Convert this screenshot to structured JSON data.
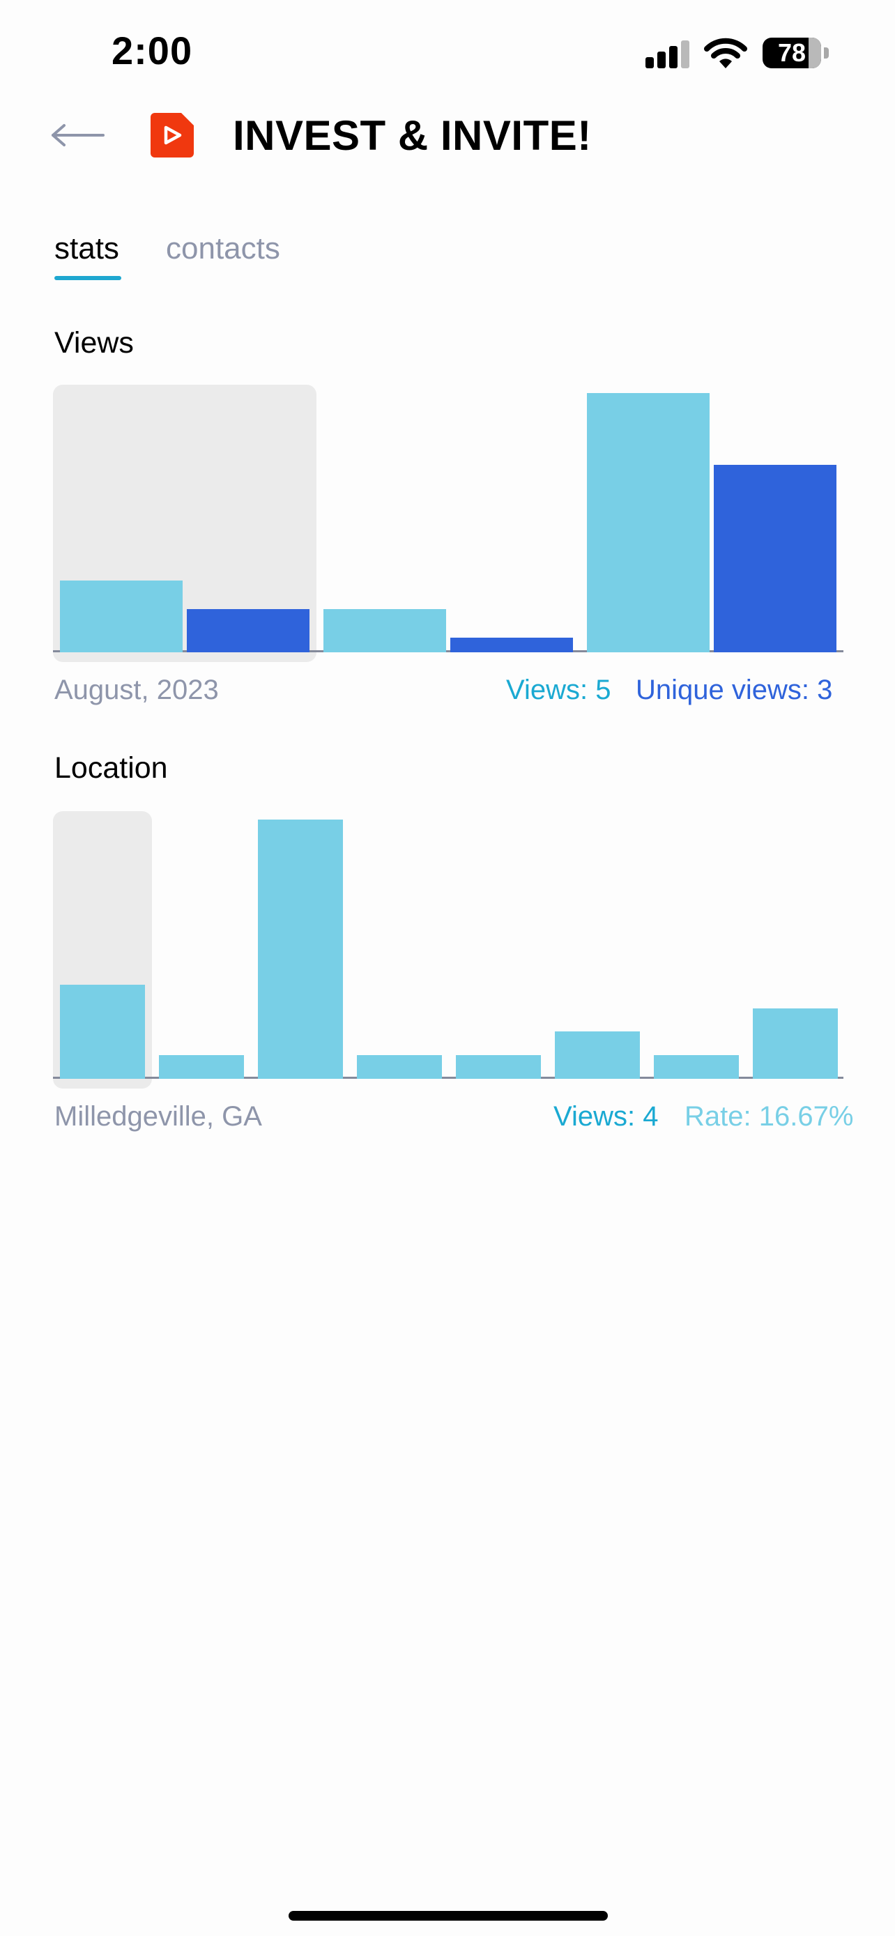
{
  "status_bar": {
    "time": "2:00",
    "battery_percent": "78",
    "battery_level": 0.78,
    "icons": [
      "cellular-signal-icon",
      "wifi-icon",
      "battery-icon"
    ]
  },
  "header": {
    "title": "INVEST & INVITE!",
    "back_icon": "arrow-left-icon",
    "app_icon": "play-document-icon",
    "app_icon_color": "#f0380f"
  },
  "tabs": [
    {
      "label": "stats",
      "active": true
    },
    {
      "label": "contacts",
      "active": false
    }
  ],
  "colors": {
    "views": "#78cfe6",
    "unique_views": "#2f63db",
    "highlight": "#ebebeb",
    "accent": "#1ea7d0"
  },
  "views_section": {
    "title": "Views",
    "selected_label": "August, 2023",
    "views_text": "Views: 5",
    "unique_text": "Unique views: 3"
  },
  "location_section": {
    "title": "Location",
    "selected_label": "Milledgeville, GA",
    "views_text": "Views: 4",
    "rate_text": "Rate: 16.67%"
  },
  "chart_data": [
    {
      "type": "bar",
      "title": "Views",
      "categories": [
        "",
        "",
        ""
      ],
      "series": [
        {
          "name": "Views",
          "values": [
            5,
            3,
            18
          ]
        },
        {
          "name": "Unique views",
          "values": [
            3,
            1,
            13
          ]
        }
      ],
      "selected_index": 0,
      "ylim": [
        0,
        18
      ]
    },
    {
      "type": "bar",
      "title": "Location",
      "categories": [
        "",
        "",
        "",
        "",
        "",
        "",
        "",
        ""
      ],
      "series": [
        {
          "name": "Views",
          "values": [
            4,
            1,
            11,
            1,
            1,
            2,
            1,
            3
          ]
        }
      ],
      "selected_index": 0,
      "ylim": [
        0,
        11
      ]
    }
  ]
}
